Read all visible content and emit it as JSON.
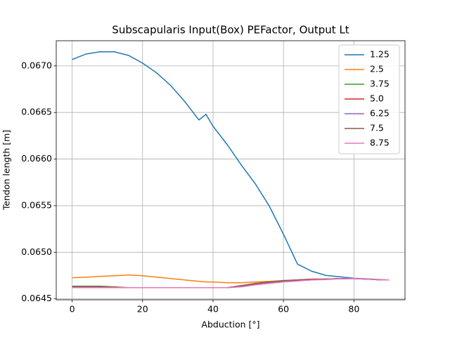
{
  "chart_data": {
    "type": "line",
    "title": "Subscapularis Input(Box) PEFactor, Output Lt",
    "xlabel": "Abduction [°]",
    "ylabel": "Tendon length [m]",
    "x": [
      0,
      4,
      8,
      12,
      16,
      20,
      24,
      28,
      32,
      36,
      38,
      40,
      44,
      48,
      52,
      56,
      60,
      64,
      68,
      72,
      76,
      80,
      84,
      88,
      90
    ],
    "series": [
      {
        "name": "1.25",
        "color": "#1f77b4",
        "values": [
          0.067068,
          0.067128,
          0.067151,
          0.067151,
          0.067113,
          0.06703,
          0.066925,
          0.066789,
          0.066616,
          0.06642,
          0.06648,
          0.066352,
          0.066157,
          0.065938,
          0.065735,
          0.065494,
          0.065193,
          0.064872,
          0.064797,
          0.064752,
          0.064737,
          0.064721,
          0.064714,
          0.064706,
          0.064703
        ]
      },
      {
        "name": "2.5",
        "color": "#ff7f0e",
        "values": [
          0.064726,
          0.064733,
          0.064741,
          0.064748,
          0.064756,
          0.064748,
          0.064733,
          0.064718,
          0.064703,
          0.064688,
          0.064681,
          0.064681,
          0.064673,
          0.064673,
          0.064681,
          0.064688,
          0.064696,
          0.064703,
          0.064711,
          0.064711,
          0.064718,
          0.064718,
          0.064711,
          0.064703,
          0.064703
        ]
      },
      {
        "name": "3.75",
        "color": "#2ca02c",
        "values": [
          0.064636,
          0.064636,
          0.064636,
          0.064628,
          0.06462,
          0.06462,
          0.06462,
          0.06462,
          0.06462,
          0.06462,
          0.06462,
          0.06462,
          0.06462,
          0.064643,
          0.064666,
          0.064681,
          0.064696,
          0.064703,
          0.064711,
          0.064711,
          0.064718,
          0.064718,
          0.064711,
          0.064703,
          0.064703
        ]
      },
      {
        "name": "5.0",
        "color": "#d62728",
        "values": [
          0.064628,
          0.064628,
          0.064628,
          0.064624,
          0.06462,
          0.06462,
          0.06462,
          0.06462,
          0.06462,
          0.06462,
          0.06462,
          0.06462,
          0.06462,
          0.064639,
          0.064662,
          0.064677,
          0.064692,
          0.064703,
          0.064711,
          0.064711,
          0.064718,
          0.064718,
          0.064711,
          0.064703,
          0.064703
        ]
      },
      {
        "name": "6.25",
        "color": "#9467bd",
        "values": [
          0.064624,
          0.064624,
          0.064624,
          0.06462,
          0.06462,
          0.06462,
          0.06462,
          0.06462,
          0.06462,
          0.06462,
          0.06462,
          0.06462,
          0.06462,
          0.064635,
          0.064658,
          0.064673,
          0.064688,
          0.064699,
          0.064707,
          0.064711,
          0.064715,
          0.064718,
          0.064711,
          0.064703,
          0.064703
        ]
      },
      {
        "name": "7.5",
        "color": "#8c564b",
        "values": [
          0.06462,
          0.06462,
          0.06462,
          0.06462,
          0.06462,
          0.06462,
          0.06462,
          0.06462,
          0.06462,
          0.06462,
          0.06462,
          0.06462,
          0.06462,
          0.064631,
          0.064654,
          0.064669,
          0.064684,
          0.064696,
          0.064703,
          0.064711,
          0.064715,
          0.064718,
          0.064711,
          0.064703,
          0.064703
        ]
      },
      {
        "name": "8.75",
        "color": "#e377c2",
        "values": [
          0.06462,
          0.06462,
          0.06462,
          0.06462,
          0.06462,
          0.06462,
          0.06462,
          0.06462,
          0.06462,
          0.06462,
          0.06462,
          0.06462,
          0.06462,
          0.064628,
          0.06465,
          0.064666,
          0.064681,
          0.064692,
          0.064703,
          0.064707,
          0.064715,
          0.064718,
          0.064711,
          0.064703,
          0.064703
        ]
      }
    ],
    "xlim": [
      -4.5,
      94.5
    ],
    "xticks": [
      0,
      20,
      40,
      60,
      80
    ],
    "ylim": [
      0.06449,
      0.06727
    ],
    "yticks": [
      0.0645,
      {
        "value": 0.065,
        "label": "0.0650"
      },
      0.0655,
      {
        "value": 0.066,
        "label": "0.0660"
      },
      0.0665,
      {
        "value": 0.067,
        "label": "0.0670"
      }
    ],
    "grid": true,
    "legend": "upper-right"
  }
}
